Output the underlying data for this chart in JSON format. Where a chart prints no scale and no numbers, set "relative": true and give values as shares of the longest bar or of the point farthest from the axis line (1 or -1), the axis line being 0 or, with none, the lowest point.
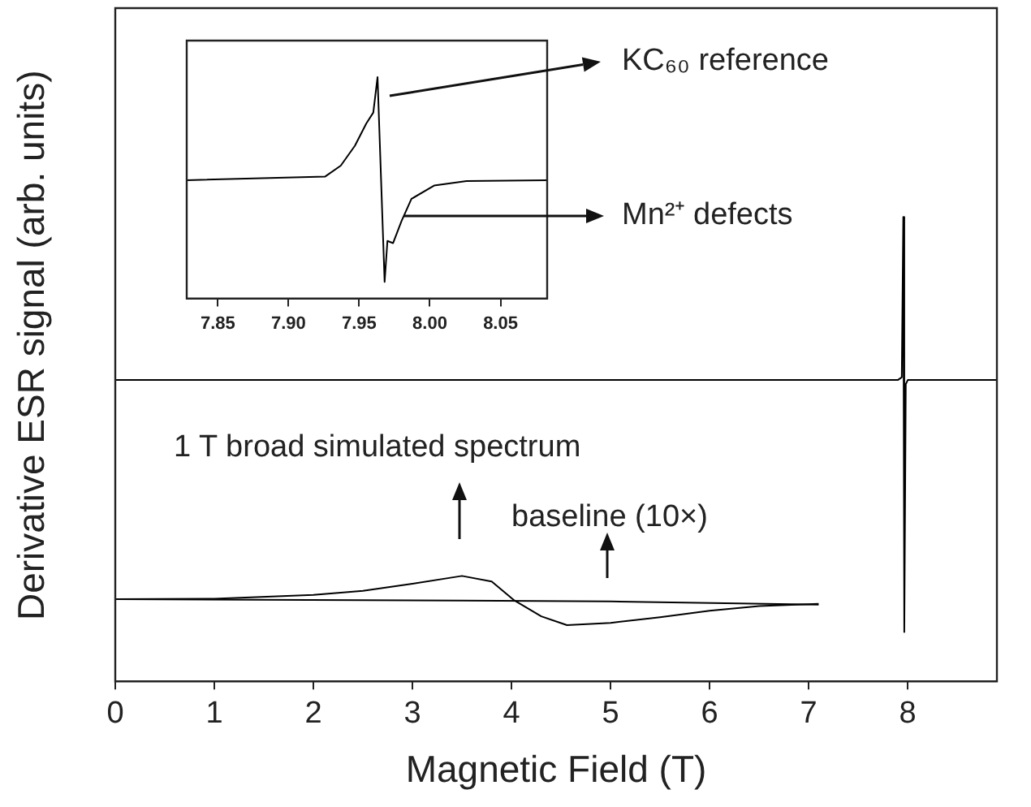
{
  "chart_data": [
    {
      "type": "line",
      "xlabel": "Magnetic Field (T)",
      "ylabel": "Derivative ESR signal (arb. units)",
      "relative": true,
      "xlim": [
        0,
        8.9
      ],
      "xticks": [
        0,
        1,
        2,
        3,
        4,
        5,
        6,
        7,
        8
      ],
      "grid": false,
      "legend": false,
      "series": [
        {
          "color": "#000000",
          "x": [
            0,
            7.9,
            7.94,
            7.955,
            7.965,
            7.98,
            8.0,
            8.9
          ],
          "values": [
            0.649,
            0.649,
            0.655,
            1.0,
            0.106,
            0.64,
            0.649,
            0.649
          ]
        },
        {
          "color": "#000000",
          "x": [
            0,
            1,
            2,
            2.5,
            3,
            3.5,
            3.8,
            4.03,
            4.3,
            4.56,
            5,
            5.5,
            6,
            6.5,
            7.1
          ],
          "values": [
            0.177,
            0.178,
            0.186,
            0.195,
            0.21,
            0.227,
            0.215,
            0.174,
            0.14,
            0.121,
            0.126,
            0.138,
            0.152,
            0.162,
            0.167
          ]
        },
        {
          "color": "#000000",
          "x": [
            0,
            3.5,
            5,
            7.1
          ],
          "values": [
            0.177,
            0.174,
            0.172,
            0.165
          ]
        }
      ],
      "annotations": [
        "1 T broad simulated spectrum",
        "baseline (10×)"
      ]
    },
    {
      "type": "line",
      "relative": true,
      "xlim": [
        7.828,
        8.083
      ],
      "xticks": [
        {
          "value": 7.85,
          "label": "7.85"
        },
        {
          "value": 7.9,
          "label": "7.90"
        },
        {
          "value": 7.95,
          "label": "7.95"
        },
        {
          "value": 8.0,
          "label": "8.00"
        },
        {
          "value": 8.05,
          "label": "8.05"
        }
      ],
      "grid": false,
      "legend": false,
      "series": [
        {
          "color": "#000000",
          "x": [
            7.828,
            7.926,
            7.937,
            7.947,
            7.955,
            7.96,
            7.963,
            7.968,
            7.97,
            7.974,
            7.98,
            7.987,
            8.003,
            8.026,
            8.083
          ],
          "values": [
            0.534,
            0.551,
            0.6,
            0.69,
            0.79,
            0.84,
            1.0,
            0.075,
            0.26,
            0.25,
            0.35,
            0.45,
            0.51,
            0.53,
            0.534
          ]
        }
      ],
      "annotations": [
        "KC₆₀ reference",
        "Mn²⁺ defects"
      ]
    }
  ]
}
